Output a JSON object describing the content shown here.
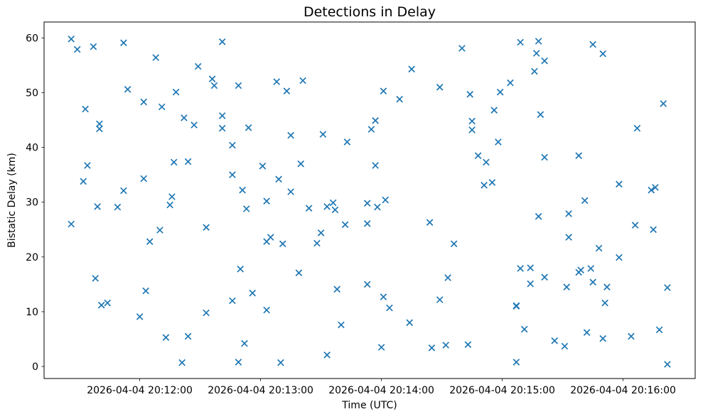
{
  "chart_data": {
    "type": "scatter",
    "title": "Detections in Delay",
    "xlabel": "Time (UTC)",
    "ylabel": "Bistatic Delay (km)",
    "marker": "x",
    "color": "#1f77b4",
    "legend": "none",
    "grid": false,
    "x_axis": {
      "date": "2026-04-04",
      "min": "20:11:12.5",
      "max": "20:16:35.8",
      "ticks": [
        {
          "time": "20:12:00",
          "label": "2026-04-04 20:12:00"
        },
        {
          "time": "20:13:00",
          "label": "2026-04-04 20:13:00"
        },
        {
          "time": "20:14:00",
          "label": "2026-04-04 20:14:00"
        },
        {
          "time": "20:15:00",
          "label": "2026-04-04 20:15:00"
        },
        {
          "time": "20:16:00",
          "label": "2026-04-04 20:16:00"
        }
      ]
    },
    "y_axis": {
      "min": -2.2,
      "max": 62.9,
      "ticks": [
        0,
        10,
        20,
        30,
        40,
        50,
        60
      ]
    },
    "points": [
      [
        "20:11:26",
        59.8
      ],
      [
        "20:11:29",
        57.9
      ],
      [
        "20:11:37",
        58.4
      ],
      [
        "20:11:52",
        59.1
      ],
      [
        "20:12:08",
        56.4
      ],
      [
        "20:12:29",
        54.8
      ],
      [
        "20:11:54",
        50.6
      ],
      [
        "20:12:18",
        50.1
      ],
      [
        "20:12:02",
        48.3
      ],
      [
        "20:12:11",
        47.4
      ],
      [
        "20:11:33",
        47.0
      ],
      [
        "20:12:22",
        45.4
      ],
      [
        "20:12:27",
        44.1
      ],
      [
        "20:11:40",
        44.3
      ],
      [
        "20:11:40",
        43.4
      ],
      [
        "20:12:17",
        37.3
      ],
      [
        "20:12:24",
        37.4
      ],
      [
        "20:11:34",
        36.7
      ],
      [
        "20:11:32",
        33.8
      ],
      [
        "20:12:02",
        34.3
      ],
      [
        "20:11:52",
        32.1
      ],
      [
        "20:12:16",
        31.0
      ],
      [
        "20:11:39",
        29.2
      ],
      [
        "20:11:49",
        29.1
      ],
      [
        "20:12:15",
        29.5
      ],
      [
        "20:11:26",
        26.0
      ],
      [
        "20:12:10",
        24.9
      ],
      [
        "20:12:05",
        22.8
      ],
      [
        "20:11:38",
        16.1
      ],
      [
        "20:12:03",
        13.8
      ],
      [
        "20:11:41",
        11.2
      ],
      [
        "20:11:44",
        11.6
      ],
      [
        "20:12:00",
        9.1
      ],
      [
        "20:12:13",
        5.3
      ],
      [
        "20:12:24",
        5.5
      ],
      [
        "20:12:21",
        0.7
      ],
      [
        "20:12:33",
        25.4
      ],
      [
        "20:12:33",
        9.8
      ],
      [
        "20:12:41",
        59.3
      ],
      [
        "20:12:36",
        52.5
      ],
      [
        "20:12:37",
        51.3
      ],
      [
        "20:12:49",
        51.3
      ],
      [
        "20:13:08",
        52.0
      ],
      [
        "20:13:21",
        52.2
      ],
      [
        "20:13:13",
        50.3
      ],
      [
        "20:12:41",
        45.8
      ],
      [
        "20:12:41",
        43.5
      ],
      [
        "20:12:54",
        43.6
      ],
      [
        "20:13:15",
        42.2
      ],
      [
        "20:13:31",
        42.4
      ],
      [
        "20:13:43",
        41.0
      ],
      [
        "20:12:46",
        40.4
      ],
      [
        "20:13:01",
        36.6
      ],
      [
        "20:13:20",
        37.0
      ],
      [
        "20:12:46",
        35.0
      ],
      [
        "20:13:09",
        34.2
      ],
      [
        "20:12:51",
        32.2
      ],
      [
        "20:13:15",
        31.9
      ],
      [
        "20:12:53",
        28.8
      ],
      [
        "20:13:03",
        30.2
      ],
      [
        "20:13:24",
        28.9
      ],
      [
        "20:13:33",
        29.2
      ],
      [
        "20:13:36",
        29.9
      ],
      [
        "20:13:37",
        28.6
      ],
      [
        "20:13:53",
        29.8
      ],
      [
        "20:13:42",
        25.9
      ],
      [
        "20:13:53",
        26.1
      ],
      [
        "20:13:30",
        24.4
      ],
      [
        "20:13:05",
        23.6
      ],
      [
        "20:13:03",
        22.8
      ],
      [
        "20:13:11",
        22.4
      ],
      [
        "20:13:28",
        22.5
      ],
      [
        "20:12:50",
        17.8
      ],
      [
        "20:13:19",
        17.1
      ],
      [
        "20:12:56",
        13.4
      ],
      [
        "20:12:46",
        12.0
      ],
      [
        "20:13:03",
        10.3
      ],
      [
        "20:13:38",
        14.1
      ],
      [
        "20:13:53",
        15.0
      ],
      [
        "20:13:40",
        7.6
      ],
      [
        "20:12:52",
        4.2
      ],
      [
        "20:13:33",
        2.1
      ],
      [
        "20:12:49",
        0.8
      ],
      [
        "20:13:10",
        0.7
      ],
      [
        "20:15:09",
        59.2
      ],
      [
        "20:14:40",
        58.1
      ],
      [
        "20:14:15",
        54.3
      ],
      [
        "20:15:04",
        51.8
      ],
      [
        "20:14:29",
        51.0
      ],
      [
        "20:14:01",
        50.3
      ],
      [
        "20:14:44",
        49.7
      ],
      [
        "20:14:59",
        50.1
      ],
      [
        "20:14:09",
        48.8
      ],
      [
        "20:14:56",
        46.8
      ],
      [
        "20:13:57",
        44.9
      ],
      [
        "20:13:55",
        43.3
      ],
      [
        "20:14:45",
        44.8
      ],
      [
        "20:14:45",
        43.2
      ],
      [
        "20:14:58",
        41.0
      ],
      [
        "20:14:48",
        38.5
      ],
      [
        "20:14:52",
        37.3
      ],
      [
        "20:13:57",
        36.7
      ],
      [
        "20:14:51",
        33.1
      ],
      [
        "20:14:55",
        33.6
      ],
      [
        "20:14:02",
        30.4
      ],
      [
        "20:13:58",
        29.1
      ],
      [
        "20:14:24",
        26.3
      ],
      [
        "20:14:36",
        22.4
      ],
      [
        "20:15:09",
        17.9
      ],
      [
        "20:15:14",
        18.0
      ],
      [
        "20:14:33",
        16.2
      ],
      [
        "20:15:14",
        15.1
      ],
      [
        "20:14:01",
        12.7
      ],
      [
        "20:14:04",
        10.7
      ],
      [
        "20:14:29",
        12.2
      ],
      [
        "20:14:14",
        8.0
      ],
      [
        "20:15:07",
        11.1
      ],
      [
        "20:15:07",
        11.0
      ],
      [
        "20:15:11",
        6.8
      ],
      [
        "20:14:00",
        3.5
      ],
      [
        "20:14:25",
        3.4
      ],
      [
        "20:14:32",
        3.9
      ],
      [
        "20:14:43",
        4.0
      ],
      [
        "20:15:07",
        0.8
      ],
      [
        "20:15:18",
        59.4
      ],
      [
        "20:15:17",
        57.2
      ],
      [
        "20:15:21",
        55.8
      ],
      [
        "20:15:16",
        53.9
      ],
      [
        "20:15:45",
        58.8
      ],
      [
        "20:15:50",
        57.1
      ],
      [
        "20:16:20",
        48.0
      ],
      [
        "20:15:19",
        46.0
      ],
      [
        "20:16:07",
        43.5
      ],
      [
        "20:15:21",
        38.2
      ],
      [
        "20:15:38",
        38.5
      ],
      [
        "20:15:58",
        33.3
      ],
      [
        "20:16:14",
        32.2
      ],
      [
        "20:16:16",
        32.7
      ],
      [
        "20:15:41",
        30.3
      ],
      [
        "20:15:18",
        27.4
      ],
      [
        "20:15:33",
        27.9
      ],
      [
        "20:16:06",
        25.8
      ],
      [
        "20:16:15",
        25.0
      ],
      [
        "20:15:33",
        23.6
      ],
      [
        "20:15:48",
        21.6
      ],
      [
        "20:15:58",
        19.9
      ],
      [
        "20:15:21",
        16.3
      ],
      [
        "20:15:38",
        17.2
      ],
      [
        "20:15:39",
        17.6
      ],
      [
        "20:15:44",
        17.9
      ],
      [
        "20:15:45",
        15.4
      ],
      [
        "20:15:32",
        14.5
      ],
      [
        "20:15:52",
        14.5
      ],
      [
        "20:16:22",
        14.4
      ],
      [
        "20:15:51",
        11.6
      ],
      [
        "20:15:42",
        6.2
      ],
      [
        "20:15:50",
        5.1
      ],
      [
        "20:15:26",
        4.7
      ],
      [
        "20:15:31",
        3.7
      ],
      [
        "20:16:04",
        5.5
      ],
      [
        "20:16:18",
        6.7
      ],
      [
        "20:16:22",
        0.4
      ]
    ]
  }
}
